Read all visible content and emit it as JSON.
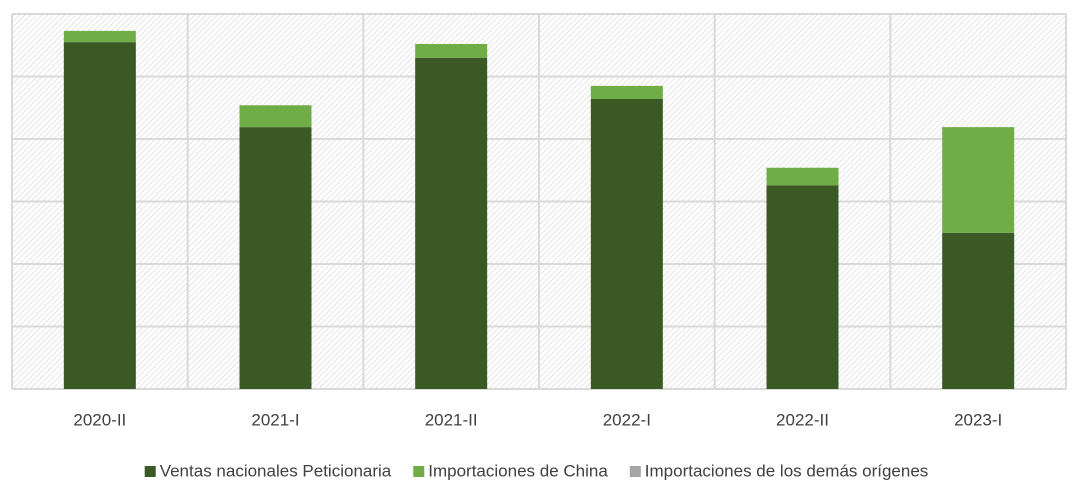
{
  "chart_data": {
    "type": "stacked_bar",
    "categories": [
      "2020-II",
      "2021-I",
      "2021-II",
      "2022-I",
      "2022-II",
      "2023-I"
    ],
    "series": [
      {
        "name": "Ventas nacionales Peticionaria",
        "color": "#3b5925",
        "values": [
          5.55,
          4.19,
          5.3,
          4.64,
          3.26,
          2.5
        ]
      },
      {
        "name": "Importaciones de China",
        "color": "#70ad47",
        "values": [
          0.18,
          0.35,
          0.22,
          0.21,
          0.28,
          1.69
        ]
      },
      {
        "name": "Importaciones de los demás orígenes",
        "color": "#a5a5a5",
        "values": [
          0,
          0,
          0,
          0,
          0,
          0
        ]
      }
    ],
    "ylim": [
      0,
      6
    ],
    "yticks": [
      0,
      1,
      2,
      3,
      4,
      5,
      6
    ],
    "grid": true,
    "legend": "bottom"
  }
}
